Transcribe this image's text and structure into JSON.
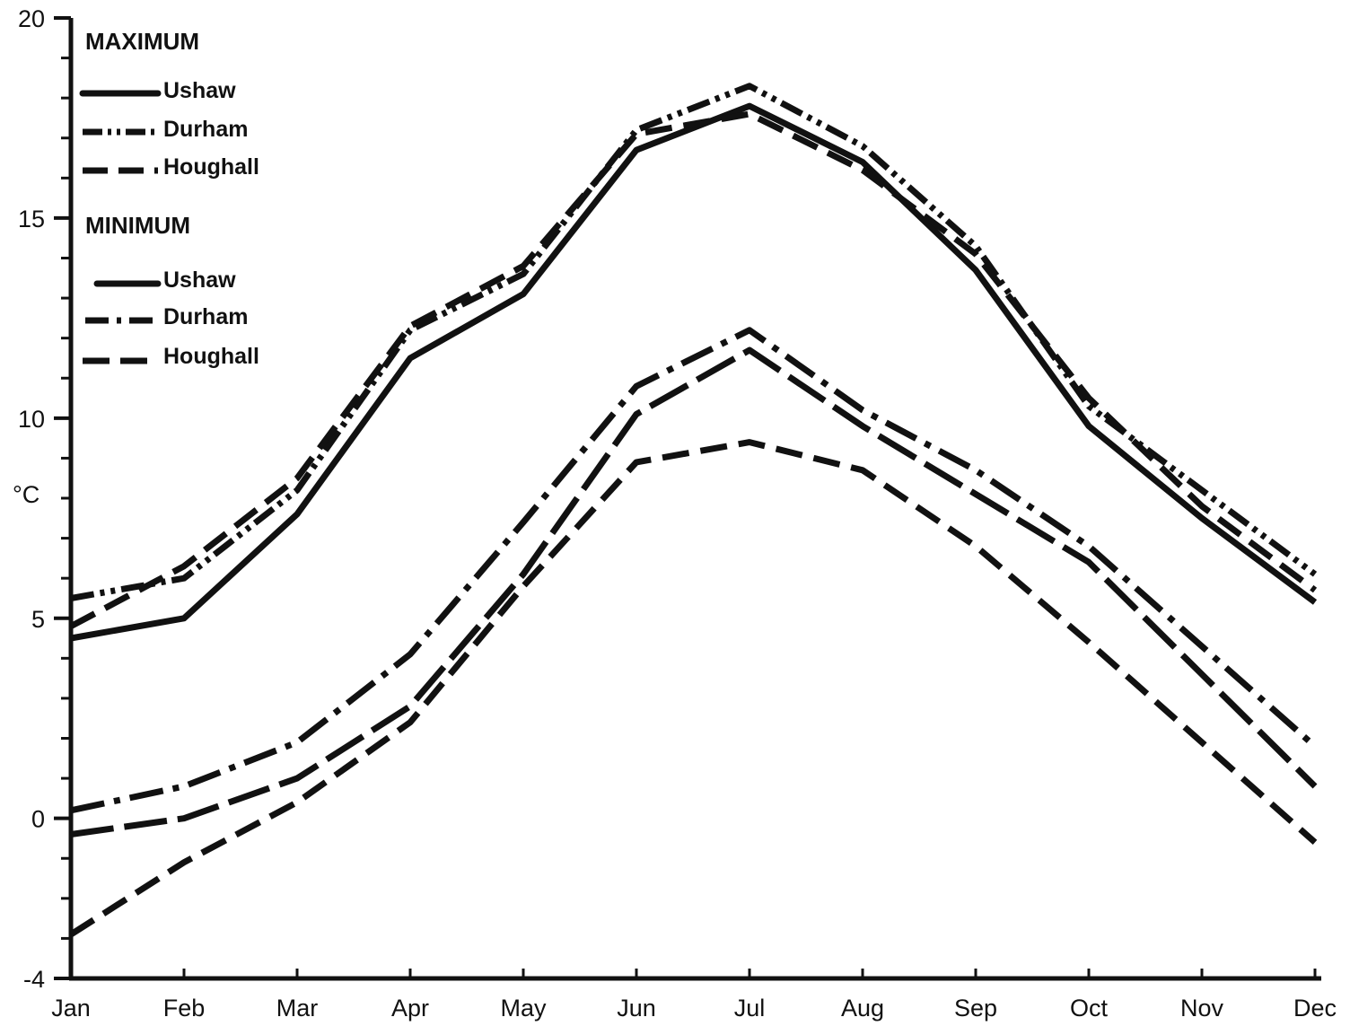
{
  "chart_data": {
    "type": "line",
    "title": "",
    "xlabel": "",
    "ylabel": "°C",
    "ylim": [
      -4,
      20
    ],
    "yticks": [
      20,
      15,
      10,
      5,
      0,
      -4
    ],
    "grid": false,
    "legend_position": "top-left",
    "categories": [
      "Jan",
      "Feb",
      "Mar",
      "Apr",
      "May",
      "Jun",
      "Jul",
      "Aug",
      "Sep",
      "Oct",
      "Nov",
      "Dec"
    ],
    "groups": [
      {
        "label": "MAXIMUM",
        "series": [
          {
            "name": "Ushaw",
            "style": "solid",
            "values": [
              4.5,
              5.0,
              7.6,
              11.5,
              13.1,
              16.7,
              17.8,
              16.4,
              13.7,
              9.8,
              7.5,
              5.4
            ]
          },
          {
            "name": "Durham",
            "style": "dash-dot-dot",
            "values": [
              5.5,
              6.0,
              8.2,
              12.2,
              13.6,
              17.2,
              18.3,
              16.8,
              14.3,
              10.3,
              8.2,
              6.1
            ]
          },
          {
            "name": "Houghall",
            "style": "dashed",
            "values": [
              4.8,
              6.3,
              8.5,
              12.3,
              13.8,
              17.1,
              17.6,
              16.2,
              14.1,
              10.5,
              7.8,
              5.7
            ]
          }
        ]
      },
      {
        "label": "MINIMUM",
        "series": [
          {
            "name": "Ushaw",
            "style": "long-dash",
            "values": [
              -0.4,
              0.0,
              1.0,
              2.8,
              6.1,
              10.1,
              11.7,
              9.8,
              8.1,
              6.4,
              3.6,
              0.8
            ]
          },
          {
            "name": "Durham",
            "style": "dash-dot",
            "values": [
              0.2,
              0.8,
              1.9,
              4.1,
              7.4,
              10.8,
              12.2,
              10.2,
              8.7,
              6.8,
              4.3,
              1.8
            ]
          },
          {
            "name": "Houghall",
            "style": "dashed",
            "values": [
              -2.9,
              -1.1,
              0.4,
              2.4,
              5.8,
              8.9,
              9.4,
              8.7,
              6.8,
              4.4,
              1.9,
              -0.6
            ]
          }
        ]
      }
    ]
  },
  "colors": {
    "ink": "#111111",
    "background": "#ffffff"
  }
}
